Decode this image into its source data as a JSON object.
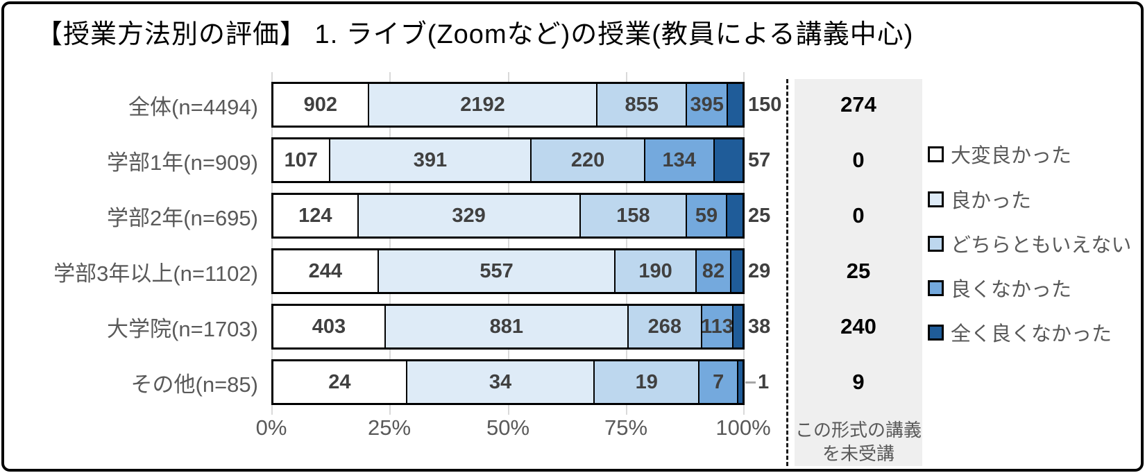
{
  "title": "【授業方法別の評価】 1. ライブ(Zoomなど)の授業(教員による講義中心)",
  "colors": {
    "series": [
      "#FFFFFF",
      "#DEEBF7",
      "#BDD7EE",
      "#74A9DD",
      "#1F5C99"
    ],
    "grid": "#D9D9D9",
    "not_attended_bg": "#EFEFEF",
    "value_text": "#404040",
    "label_text": "#595959"
  },
  "chart_data": {
    "type": "bar",
    "stacked": true,
    "orientation": "horizontal",
    "percent_axis": true,
    "title": "【授業方法別の評価】 1. ライブ(Zoomなど)の授業(教員による講義中心)",
    "x_ticks": [
      "0%",
      "25%",
      "50%",
      "75%",
      "100%"
    ],
    "x_range": [
      0,
      100
    ],
    "grid": true,
    "series_names": [
      "大変良かった",
      "良かった",
      "どちらともいえない",
      "良くなかった",
      "全く良くなかった"
    ],
    "categories": [
      "全体(n=4494)",
      "学部1年(n=909)",
      "学部2年(n=695)",
      "学部3年以上(n=1102)",
      "大学院(n=1703)",
      "その他(n=85)"
    ],
    "rows": [
      {
        "label": "全体(n=4494)",
        "values": [
          902,
          2192,
          855,
          395,
          150
        ],
        "not_attended": 274
      },
      {
        "label": "学部1年(n=909)",
        "values": [
          107,
          391,
          220,
          134,
          57
        ],
        "not_attended": 0
      },
      {
        "label": "学部2年(n=695)",
        "values": [
          124,
          329,
          158,
          59,
          25
        ],
        "not_attended": 0
      },
      {
        "label": "学部3年以上(n=1102)",
        "values": [
          244,
          557,
          190,
          82,
          29
        ],
        "not_attended": 25
      },
      {
        "label": "大学院(n=1703)",
        "values": [
          403,
          881,
          268,
          113,
          38
        ],
        "not_attended": 240
      },
      {
        "label": "その他(n=85)",
        "values": [
          24,
          34,
          19,
          7,
          1
        ],
        "not_attended": 9
      }
    ],
    "not_attended_column_label": "この形式の講義\nを未受講",
    "legend_position": "right"
  },
  "legend": {
    "items": [
      {
        "label": "大変良かった"
      },
      {
        "label": "良かった"
      },
      {
        "label": "どちらともいえない"
      },
      {
        "label": "良くなかった"
      },
      {
        "label": "全く良くなかった"
      }
    ]
  }
}
